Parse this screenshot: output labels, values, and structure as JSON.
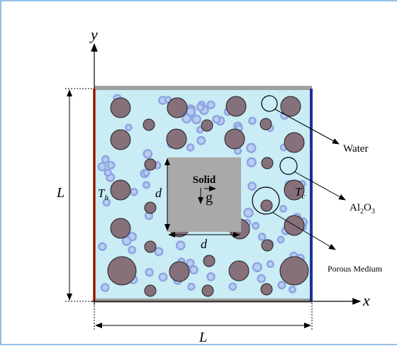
{
  "axes": {
    "y": "y",
    "x": "x"
  },
  "dimensions": {
    "height": "L",
    "width": "L",
    "solid_height": "d",
    "solid_width": "d"
  },
  "walls": {
    "hot": {
      "base": "T",
      "sub": "h"
    },
    "cold": {
      "base": "T",
      "sub": "c"
    }
  },
  "solid": {
    "label": "Solid",
    "gravity": "g"
  },
  "annotations": {
    "water": "Water",
    "nanoparticle": [
      "Al",
      "2",
      "O",
      "3"
    ],
    "porous": "Porous Medium"
  }
}
